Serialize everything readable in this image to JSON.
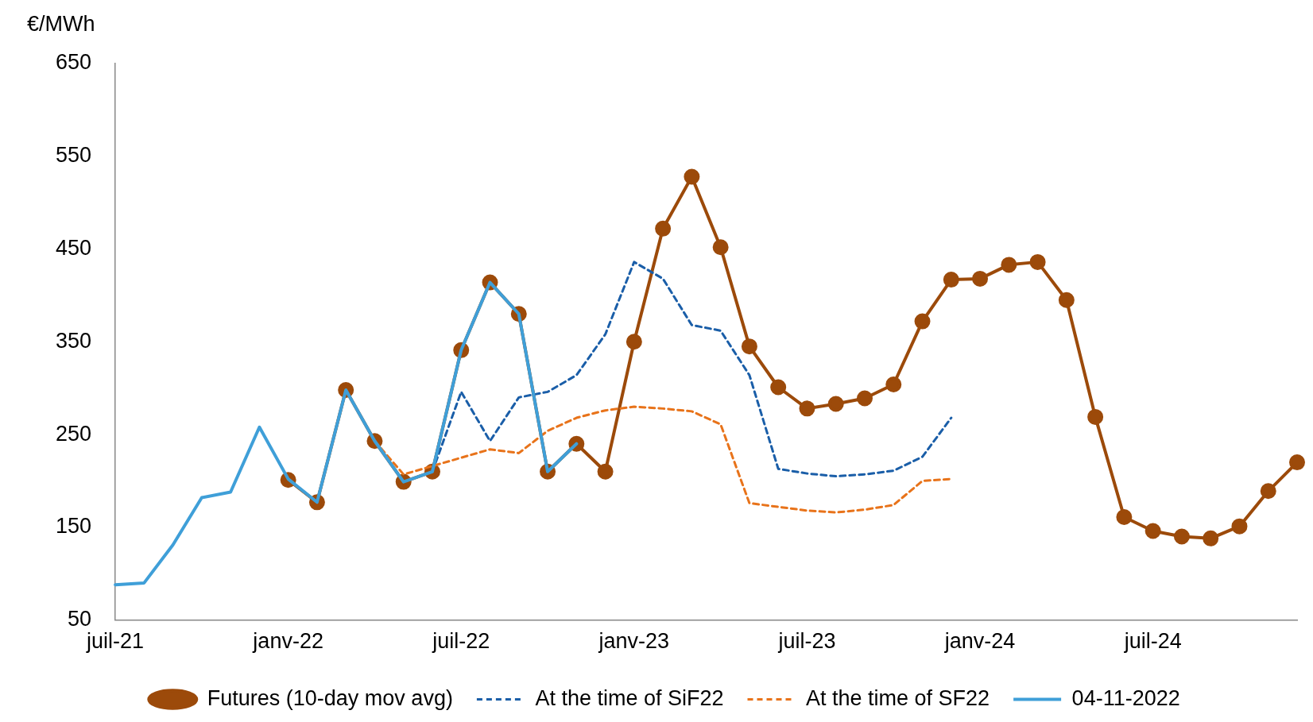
{
  "chart_data": {
    "type": "line",
    "ylabel": "€/MWh",
    "categories": [
      "juil-21",
      null,
      null,
      null,
      null,
      null,
      "janv-22",
      null,
      null,
      null,
      null,
      null,
      "juil-22",
      null,
      null,
      null,
      null,
      null,
      "janv-23",
      null,
      null,
      null,
      null,
      null,
      "juil-23",
      null,
      null,
      null,
      null,
      null,
      "janv-24",
      null,
      null,
      null,
      null,
      null,
      "juil-24",
      null,
      null,
      null,
      null,
      null
    ],
    "ylim": [
      50,
      650
    ],
    "yticks": [
      50,
      150,
      250,
      350,
      450,
      550,
      650
    ],
    "grid": false,
    "legend": "bottom",
    "series": [
      {
        "name": "Futures (10-day mov avg)",
        "color": "#9c4a0a",
        "marker": "circle",
        "line_style": "solid",
        "values": [
          null,
          null,
          null,
          null,
          null,
          null,
          201,
          177,
          298,
          243,
          199,
          210,
          341,
          414,
          380,
          210,
          240,
          210,
          350,
          472,
          528,
          452,
          345,
          301,
          278,
          283,
          289,
          304,
          372,
          417,
          418,
          433,
          436,
          395,
          269,
          161,
          146,
          140,
          138,
          151,
          189,
          220
        ]
      },
      {
        "name": "At the time of SiF22",
        "color": "#1a5ea8",
        "marker": "none",
        "line_style": "dashed",
        "values": [
          null,
          null,
          null,
          null,
          null,
          null,
          null,
          null,
          null,
          null,
          null,
          210,
          296,
          243,
          290,
          296,
          314,
          358,
          436,
          418,
          368,
          362,
          314,
          213,
          208,
          205,
          207,
          211,
          226,
          268,
          null,
          null,
          null,
          null,
          null,
          null,
          null,
          null,
          null,
          null,
          null,
          null
        ]
      },
      {
        "name": "At the time of SF22",
        "color": "#e8731a",
        "marker": "none",
        "line_style": "dashed",
        "values": [
          null,
          null,
          null,
          null,
          null,
          null,
          null,
          null,
          null,
          243,
          207,
          216,
          225,
          234,
          230,
          254,
          268,
          276,
          280,
          278,
          275,
          261,
          176,
          172,
          168,
          166,
          169,
          174,
          200,
          202,
          null,
          null,
          null,
          null,
          null,
          null,
          null,
          null,
          null,
          null,
          null,
          null
        ]
      },
      {
        "name": "04-11-2022",
        "color": "#3f9fd8",
        "marker": "none",
        "line_style": "solid",
        "values": [
          88,
          90,
          131,
          182,
          188,
          258,
          202,
          177,
          298,
          243,
          199,
          210,
          341,
          414,
          380,
          210,
          240,
          null,
          null,
          null,
          null,
          null,
          null,
          null,
          null,
          null,
          null,
          null,
          null,
          null,
          null,
          null,
          null,
          null,
          null,
          null,
          null,
          null,
          null,
          null,
          null,
          null
        ]
      }
    ]
  }
}
